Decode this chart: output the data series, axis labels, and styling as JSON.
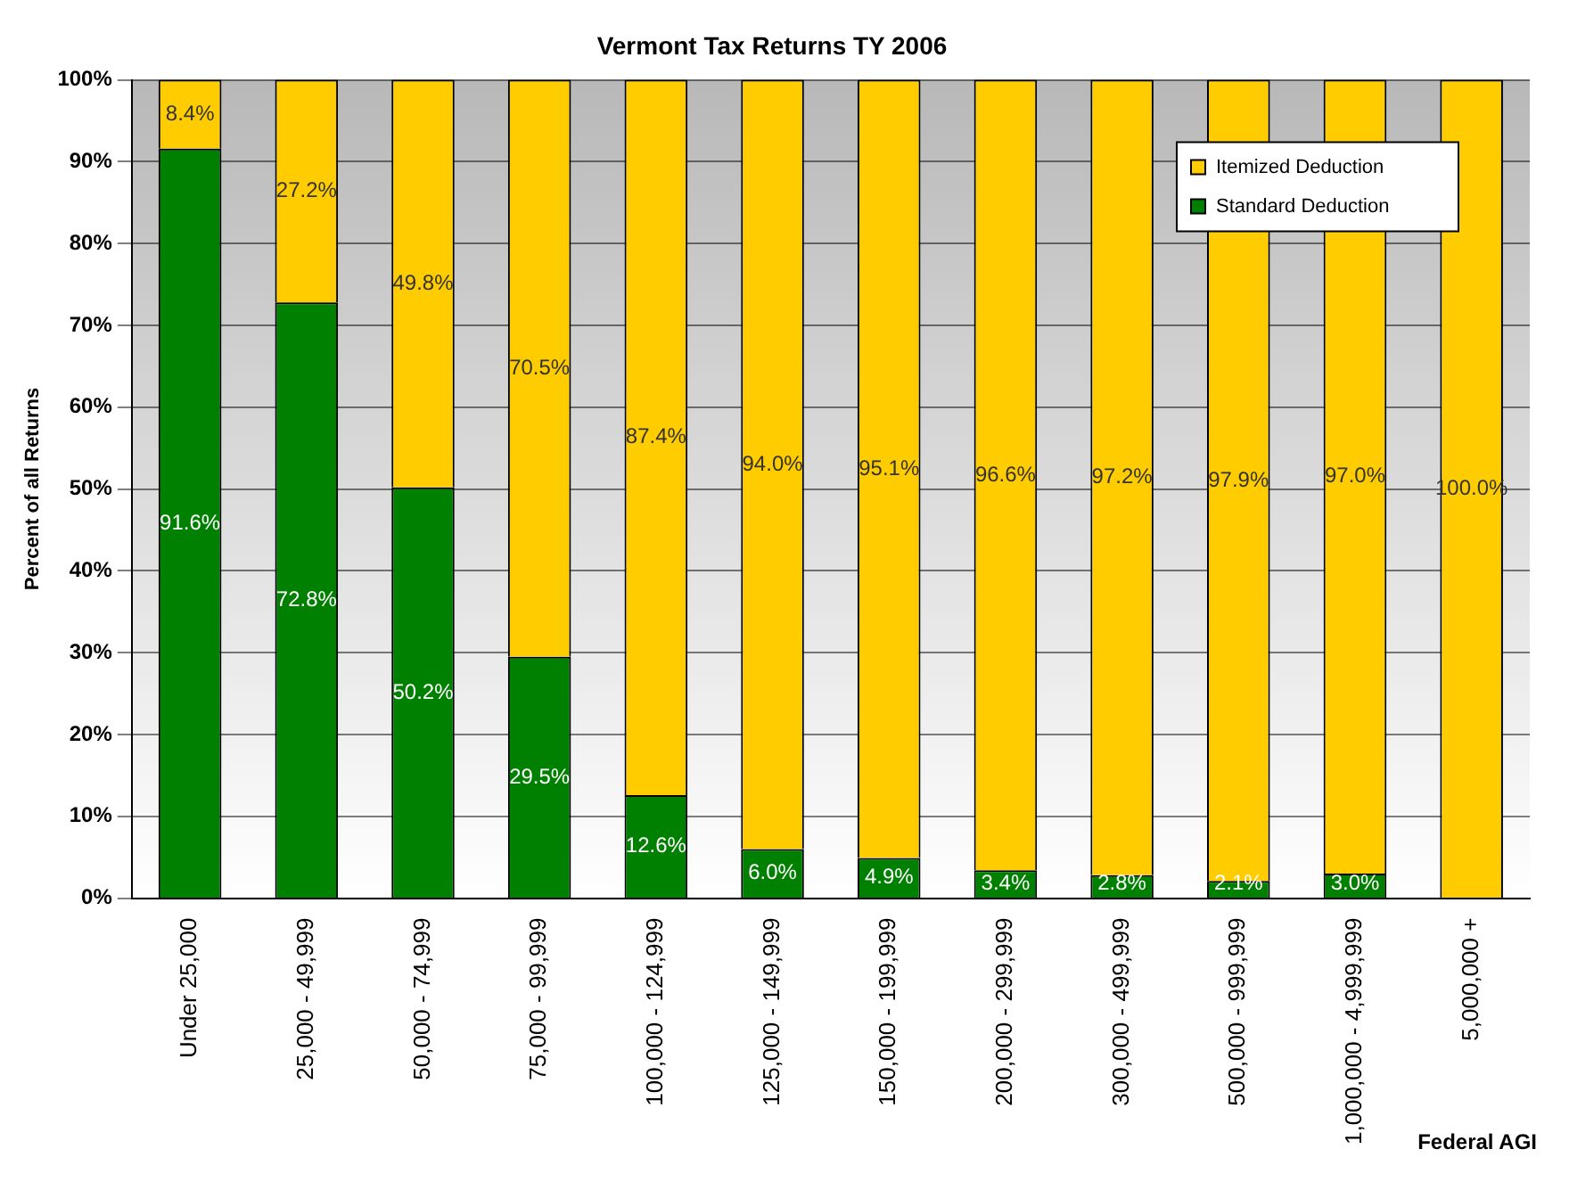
{
  "chart_data": {
    "type": "bar",
    "title": "Vermont Tax Returns TY 2006",
    "xlabel": "Federal AGI",
    "ylabel": "Percent of all Returns",
    "categories": [
      "Under 25,000",
      "25,000 - 49,999",
      "50,000 - 74,999",
      "75,000 - 99,999",
      "100,000 - 124,999",
      "125,000 - 149,999",
      "150,000 - 199,999",
      "200,000 - 299,999",
      "300,000 - 499,999",
      "500,000 - 999,999",
      "1,000,000 - 4,999,999",
      "5,000,000 +"
    ],
    "stacked": true,
    "series": [
      {
        "name": "Standard Deduction",
        "color": "#008000",
        "values": [
          91.6,
          72.8,
          50.2,
          29.5,
          12.6,
          6.0,
          4.9,
          3.4,
          2.8,
          2.1,
          3.0,
          0
        ],
        "value_labels": [
          "91.6%",
          "72.8%",
          "50.2%",
          "29.5%",
          "12.6%",
          "6.0%",
          "4.9%",
          "3.4%",
          "2.8%",
          "2.1%",
          "3.0%",
          null
        ]
      },
      {
        "name": "Itemized Deduction",
        "color": "#ffcc00",
        "values": [
          8.4,
          27.2,
          49.8,
          70.5,
          87.4,
          94.0,
          95.1,
          96.6,
          97.2,
          97.9,
          97.0,
          100.0
        ],
        "value_labels": [
          "8.4%",
          "27.2%",
          "49.8%",
          "70.5%",
          "87.4%",
          "94.0%",
          "95.1%",
          "96.6%",
          "97.2%",
          "97.9%",
          "97.0%",
          "100.0%"
        ]
      }
    ],
    "ylim": [
      0,
      100
    ],
    "yticks": [
      {
        "value": 0,
        "label": "0%"
      },
      {
        "value": 10,
        "label": "10%"
      },
      {
        "value": 20,
        "label": "20%"
      },
      {
        "value": 30,
        "label": "30%"
      },
      {
        "value": 40,
        "label": "40%"
      },
      {
        "value": 50,
        "label": "50%"
      },
      {
        "value": 60,
        "label": "60%"
      },
      {
        "value": 70,
        "label": "70%"
      },
      {
        "value": 80,
        "label": "80%"
      },
      {
        "value": 90,
        "label": "90%"
      },
      {
        "value": 100,
        "label": "100%"
      }
    ],
    "grid": "y",
    "legend": "top right"
  }
}
